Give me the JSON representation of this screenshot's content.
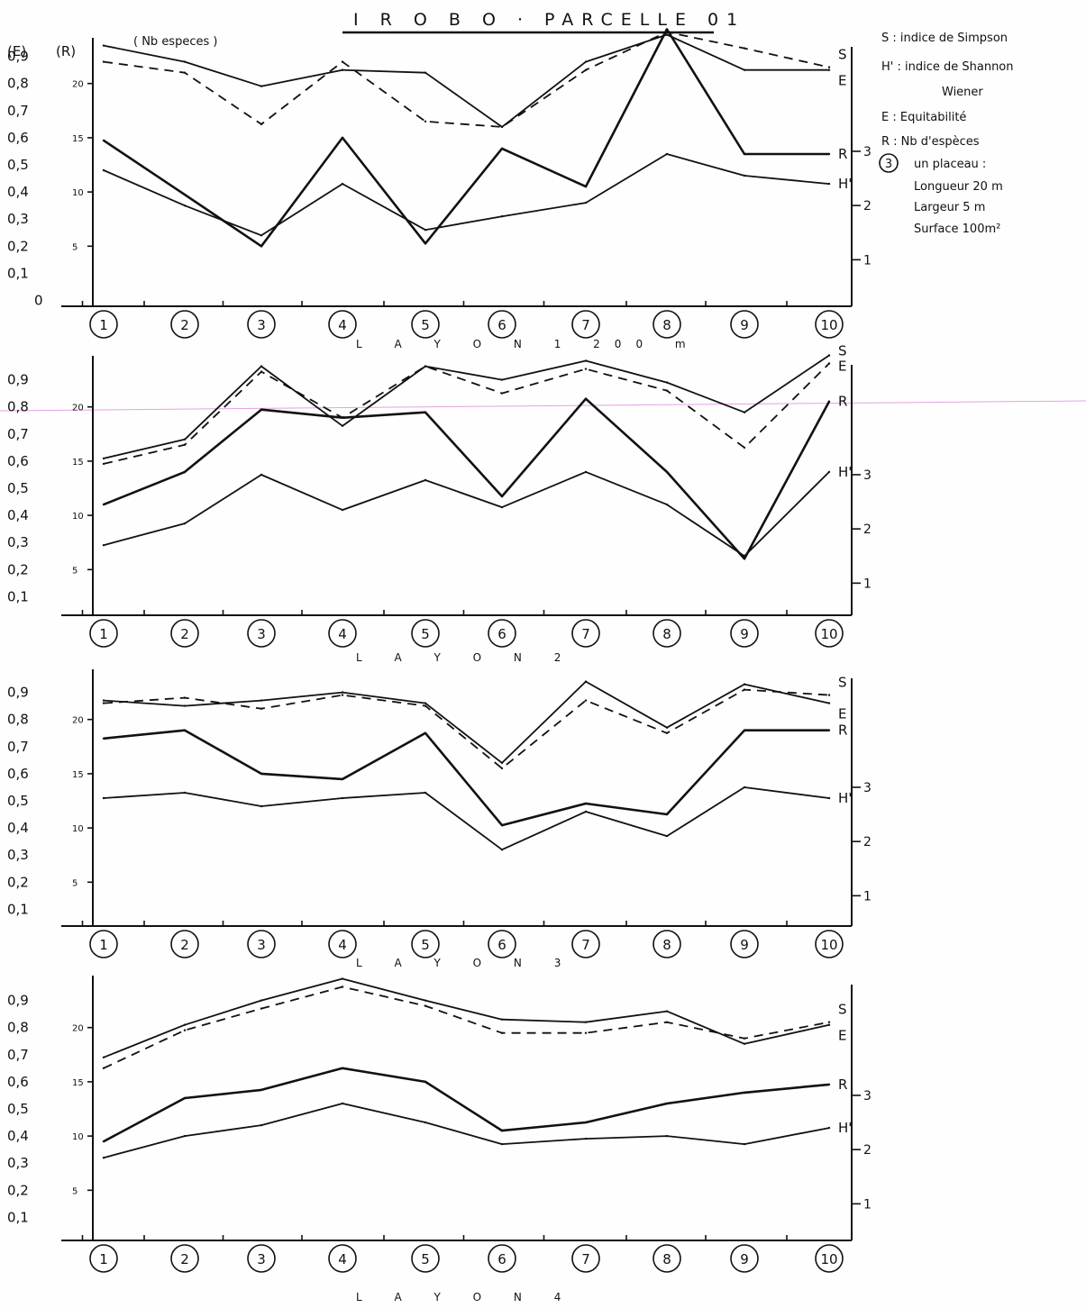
{
  "title": "I R O B O · PARCELLE 01",
  "legend": {
    "S": "S : indice de Simpson",
    "H": "H' : indice de Shannon",
    "H2": "Wiener",
    "E": "E : Equitabilité",
    "R": "R : Nb d'espèces",
    "P1": "un placeau :",
    "P2": "Longueur 20 m",
    "P3": "Largeur  5 m",
    "P4": "Surface  100m²",
    "Pnum": "3"
  },
  "axis_titles": {
    "left": "(E)",
    "species": "(R)",
    "nb": "( Nb especes )"
  },
  "left_ticks": [
    "0,9",
    "0,8",
    "0,7",
    "0,6",
    "0,5",
    "0,4",
    "0,3",
    "0,2",
    "0,1"
  ],
  "left_zero": "0",
  "species_ticks": [
    "20",
    "15",
    "10",
    "5"
  ],
  "right_ticks": [
    "3",
    "2",
    "1"
  ],
  "colors": {
    "ink": "#111111",
    "paper": "#fefefe",
    "stray_line": "#e3a2e3"
  },
  "chart_data": [
    {
      "type": "line",
      "title": "I R O B O · PARCELLE 01",
      "xlabel": "L A Y O N 1  200 m",
      "categories": [
        "1",
        "2",
        "3",
        "4",
        "5",
        "6",
        "7",
        "8",
        "9",
        "10"
      ],
      "ylim": [
        0,
        1
      ],
      "series": [
        {
          "name": "S",
          "style": "dashed",
          "values": [
            0.88,
            0.84,
            0.65,
            0.88,
            0.66,
            0.64,
            0.85,
            0.99,
            0.93,
            0.86
          ]
        },
        {
          "name": "E",
          "style": "solid",
          "values": [
            0.94,
            0.88,
            0.79,
            0.85,
            0.84,
            0.64,
            0.88,
            0.98,
            0.85,
            0.85
          ]
        },
        {
          "name": "R",
          "style": "solid-bold",
          "values": [
            0.59,
            0.39,
            0.2,
            0.6,
            0.21,
            0.56,
            0.42,
            1.0,
            0.54,
            0.54
          ]
        },
        {
          "name": "H'",
          "style": "solid",
          "values": [
            0.48,
            0.35,
            0.24,
            0.43,
            0.26,
            0.31,
            0.36,
            0.54,
            0.46,
            0.43
          ]
        }
      ]
    },
    {
      "type": "line",
      "xlabel": "L A Y O N  2",
      "categories": [
        "1",
        "2",
        "3",
        "4",
        "5",
        "6",
        "7",
        "8",
        "9",
        "10"
      ],
      "ylim": [
        0,
        1
      ],
      "series": [
        {
          "name": "S",
          "style": "dashed",
          "values": [
            0.59,
            0.66,
            0.93,
            0.76,
            0.95,
            0.85,
            0.94,
            0.86,
            0.65,
            0.96
          ]
        },
        {
          "name": "E",
          "style": "solid",
          "values": [
            0.61,
            0.68,
            0.95,
            0.73,
            0.95,
            0.9,
            0.97,
            0.89,
            0.78,
            0.99
          ]
        },
        {
          "name": "R",
          "style": "solid-bold",
          "values": [
            0.44,
            0.56,
            0.79,
            0.76,
            0.78,
            0.47,
            0.83,
            0.56,
            0.24,
            0.82
          ]
        },
        {
          "name": "H'",
          "style": "solid",
          "values": [
            0.29,
            0.37,
            0.55,
            0.42,
            0.53,
            0.43,
            0.56,
            0.44,
            0.25,
            0.56
          ]
        }
      ]
    },
    {
      "type": "line",
      "xlabel": "L A Y O N  3",
      "categories": [
        "1",
        "2",
        "3",
        "4",
        "5",
        "6",
        "7",
        "8",
        "9",
        "10"
      ],
      "ylim": [
        0,
        1
      ],
      "series": [
        {
          "name": "S",
          "style": "dashed",
          "values": [
            0.86,
            0.88,
            0.84,
            0.89,
            0.85,
            0.62,
            0.87,
            0.75,
            0.91,
            0.89
          ]
        },
        {
          "name": "E",
          "style": "solid",
          "values": [
            0.87,
            0.85,
            0.87,
            0.9,
            0.86,
            0.64,
            0.94,
            0.77,
            0.93,
            0.86
          ]
        },
        {
          "name": "R",
          "style": "solid-bold",
          "values": [
            0.73,
            0.76,
            0.6,
            0.58,
            0.75,
            0.41,
            0.49,
            0.45,
            0.76,
            0.76
          ]
        },
        {
          "name": "H'",
          "style": "solid",
          "values": [
            0.51,
            0.53,
            0.48,
            0.51,
            0.53,
            0.32,
            0.46,
            0.37,
            0.55,
            0.51
          ]
        }
      ]
    },
    {
      "type": "line",
      "xlabel": "L A Y O N  4",
      "categories": [
        "1",
        "2",
        "3",
        "4",
        "5",
        "6",
        "7",
        "8",
        "9",
        "10"
      ],
      "ylim": [
        0,
        1
      ],
      "series": [
        {
          "name": "S",
          "style": "dashed",
          "values": [
            0.65,
            0.79,
            0.87,
            0.95,
            0.88,
            0.78,
            0.78,
            0.82,
            0.76,
            0.82
          ]
        },
        {
          "name": "E",
          "style": "solid",
          "values": [
            0.69,
            0.81,
            0.9,
            0.98,
            0.9,
            0.83,
            0.82,
            0.86,
            0.74,
            0.81
          ]
        },
        {
          "name": "R",
          "style": "solid-bold",
          "values": [
            0.38,
            0.54,
            0.57,
            0.65,
            0.6,
            0.42,
            0.45,
            0.52,
            0.56,
            0.59
          ]
        },
        {
          "name": "H'",
          "style": "solid",
          "values": [
            0.32,
            0.4,
            0.44,
            0.52,
            0.45,
            0.37,
            0.39,
            0.4,
            0.37,
            0.43
          ]
        }
      ]
    }
  ]
}
